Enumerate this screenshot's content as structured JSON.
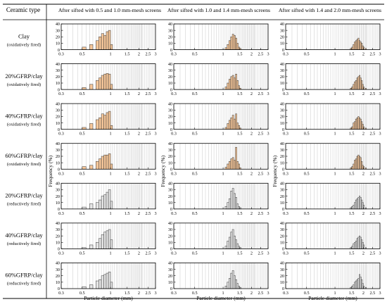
{
  "table": {
    "header_first": "Ceramic type",
    "columns": [
      "After sifted with 0.5 and 1.0 mm-mesh screens",
      "After sifted with 1.0 and 1.4 mm-mesh screens",
      "After sifted with 1.4 and 2.0 mm-mesh screens"
    ],
    "rows": [
      {
        "name": "Clay",
        "firing": "(oxidatively fired)",
        "style": "oxidative"
      },
      {
        "name": "20%GFRP/clay",
        "firing": "(oxidatively fired)",
        "style": "oxidative"
      },
      {
        "name": "40%GFRP/clay",
        "firing": "(oxidatively fired)",
        "style": "oxidative"
      },
      {
        "name": "60%GFRP/clay",
        "firing": "(oxidatively fired)",
        "style": "oxidative"
      },
      {
        "name": "20%GFRP/clay",
        "firing": "(reductively fired)",
        "style": "reductive"
      },
      {
        "name": "40%GFRP/clay",
        "firing": "(reductively fired)",
        "style": "reductive"
      },
      {
        "name": "60%GFRP/clay",
        "firing": "(reductively fired)",
        "style": "reductive"
      }
    ]
  },
  "colors": {
    "oxidative_fill": "#f6c79a",
    "reductive_fill": "#e6e6e6",
    "bar_stroke": "#333333",
    "grid": "#b0b0b0",
    "border": "#000000"
  },
  "chart_data": {
    "type": "bar",
    "xscale": "log",
    "xlabel": "Particle diameter (mm)",
    "ylabel": "Frequency (%)",
    "xlim": [
      0.3,
      3
    ],
    "ylim": [
      0,
      40
    ],
    "x_ticks": [
      "0.3",
      "0.5",
      "1",
      "1.5",
      "2",
      "2.5",
      "3"
    ],
    "y_ticks": [
      "0",
      "10",
      "20",
      "30",
      "40"
    ],
    "bin_edges": [
      0.3,
      0.35,
      0.4,
      0.45,
      0.5,
      0.55,
      0.6,
      0.65,
      0.7,
      0.75,
      0.8,
      0.85,
      0.9,
      0.95,
      1.0,
      1.05,
      1.1,
      1.15,
      1.2,
      1.25,
      1.3,
      1.35,
      1.4,
      1.45,
      1.5,
      1.55,
      1.6,
      1.65,
      1.7,
      1.75,
      1.8,
      1.85,
      1.9,
      1.95,
      2.0,
      2.05,
      2.1,
      2.15,
      2.2,
      2.3,
      2.4,
      2.5,
      2.6,
      2.7,
      2.8,
      2.9,
      3.0
    ],
    "panels": [
      [
        {
          "bins": [
            0.5,
            0.55,
            0.6,
            0.65,
            0.7,
            0.75,
            0.8,
            0.85,
            0.9,
            0.95,
            1.0
          ],
          "values": [
            4,
            0,
            8,
            0,
            14,
            20,
            25,
            22,
            28,
            30,
            8
          ]
        },
        {
          "bins": [
            1.05,
            1.1,
            1.15,
            1.2,
            1.25,
            1.3,
            1.35,
            1.4,
            1.45,
            1.5
          ],
          "values": [
            3,
            8,
            14,
            20,
            24,
            22,
            18,
            10,
            4,
            2
          ]
        },
        {
          "bins": [
            1.45,
            1.5,
            1.55,
            1.6,
            1.65,
            1.7,
            1.75,
            1.8,
            1.85,
            1.9,
            1.95,
            2.0,
            2.1
          ],
          "values": [
            2,
            4,
            8,
            12,
            14,
            16,
            18,
            14,
            12,
            10,
            6,
            4,
            2
          ]
        }
      ],
      [
        {
          "bins": [
            0.5,
            0.55,
            0.6,
            0.65,
            0.7,
            0.75,
            0.8,
            0.85,
            0.9,
            0.95,
            1.0
          ],
          "values": [
            3,
            0,
            8,
            0,
            14,
            18,
            22,
            24,
            25,
            24,
            8
          ]
        },
        {
          "bins": [
            1.05,
            1.1,
            1.15,
            1.2,
            1.25,
            1.3,
            1.35,
            1.4,
            1.45,
            1.5
          ],
          "values": [
            4,
            10,
            16,
            20,
            22,
            18,
            24,
            14,
            6,
            2
          ]
        },
        {
          "bins": [
            1.45,
            1.5,
            1.55,
            1.6,
            1.65,
            1.7,
            1.75,
            1.8,
            1.85,
            1.9,
            1.95,
            2.0,
            2.1
          ],
          "values": [
            2,
            4,
            8,
            12,
            14,
            18,
            20,
            22,
            18,
            14,
            8,
            4,
            2
          ]
        }
      ],
      [
        {
          "bins": [
            0.5,
            0.55,
            0.6,
            0.65,
            0.7,
            0.75,
            0.8,
            0.85,
            0.9,
            0.95,
            1.0
          ],
          "values": [
            3,
            0,
            9,
            0,
            15,
            18,
            24,
            22,
            26,
            28,
            6
          ]
        },
        {
          "bins": [
            1.05,
            1.1,
            1.15,
            1.2,
            1.25,
            1.3,
            1.35,
            1.4,
            1.45,
            1.5
          ],
          "values": [
            3,
            9,
            14,
            18,
            22,
            16,
            24,
            10,
            6,
            2
          ]
        },
        {
          "bins": [
            1.45,
            1.5,
            1.55,
            1.6,
            1.65,
            1.7,
            1.75,
            1.8,
            1.85,
            1.9,
            1.95,
            2.0,
            2.1
          ],
          "values": [
            2,
            4,
            10,
            12,
            16,
            18,
            20,
            18,
            16,
            12,
            8,
            4,
            2
          ]
        }
      ],
      [
        {
          "bins": [
            0.5,
            0.55,
            0.6,
            0.65,
            0.7,
            0.75,
            0.8,
            0.85,
            0.9,
            0.95,
            1.0
          ],
          "values": [
            4,
            0,
            6,
            0,
            12,
            16,
            20,
            22,
            22,
            24,
            8
          ]
        },
        {
          "bins": [
            1.05,
            1.1,
            1.15,
            1.2,
            1.25,
            1.3,
            1.35,
            1.4,
            1.45,
            1.5
          ],
          "values": [
            3,
            8,
            12,
            16,
            18,
            14,
            34,
            12,
            8,
            2
          ]
        },
        {
          "bins": [
            1.45,
            1.5,
            1.55,
            1.6,
            1.65,
            1.7,
            1.75,
            1.8,
            1.85,
            1.9,
            1.95,
            2.0,
            2.1
          ],
          "values": [
            2,
            4,
            8,
            14,
            16,
            20,
            22,
            20,
            18,
            12,
            6,
            4,
            2
          ]
        }
      ],
      [
        {
          "bins": [
            0.5,
            0.55,
            0.6,
            0.65,
            0.7,
            0.75,
            0.8,
            0.85,
            0.9,
            0.95,
            1.0
          ],
          "values": [
            3,
            0,
            8,
            0,
            10,
            14,
            20,
            22,
            26,
            30,
            12
          ]
        },
        {
          "bins": [
            1.05,
            1.1,
            1.15,
            1.2,
            1.25,
            1.3,
            1.35,
            1.4,
            1.45,
            1.5
          ],
          "values": [
            4,
            10,
            16,
            28,
            32,
            24,
            18,
            8,
            4,
            2
          ]
        },
        {
          "bins": [
            1.45,
            1.5,
            1.55,
            1.6,
            1.65,
            1.7,
            1.75,
            1.8,
            1.85,
            1.9,
            1.95,
            2.0,
            2.1
          ],
          "values": [
            2,
            4,
            6,
            10,
            14,
            16,
            18,
            20,
            18,
            14,
            10,
            6,
            2
          ]
        }
      ],
      [
        {
          "bins": [
            0.5,
            0.55,
            0.6,
            0.65,
            0.7,
            0.75,
            0.8,
            0.85,
            0.9,
            0.95,
            1.0
          ],
          "values": [
            2,
            0,
            6,
            0,
            10,
            16,
            22,
            26,
            28,
            30,
            14
          ]
        },
        {
          "bins": [
            1.05,
            1.1,
            1.15,
            1.2,
            1.25,
            1.3,
            1.35,
            1.4,
            1.45,
            1.5
          ],
          "values": [
            4,
            12,
            18,
            26,
            30,
            20,
            14,
            8,
            4,
            2
          ]
        },
        {
          "bins": [
            1.45,
            1.5,
            1.55,
            1.6,
            1.65,
            1.7,
            1.75,
            1.8,
            1.85,
            1.9,
            1.95,
            2.0,
            2.1
          ],
          "values": [
            2,
            4,
            8,
            10,
            12,
            16,
            18,
            20,
            18,
            14,
            10,
            6,
            2
          ]
        }
      ],
      [
        {
          "bins": [
            0.5,
            0.55,
            0.6,
            0.65,
            0.7,
            0.75,
            0.8,
            0.85,
            0.9,
            0.95,
            1.0
          ],
          "values": [
            3,
            0,
            6,
            0,
            12,
            14,
            20,
            22,
            24,
            26,
            10
          ]
        },
        {
          "bins": [
            1.05,
            1.1,
            1.15,
            1.2,
            1.25,
            1.3,
            1.35,
            1.4,
            1.45,
            1.5
          ],
          "values": [
            4,
            10,
            16,
            24,
            28,
            20,
            14,
            8,
            4,
            2
          ]
        },
        {
          "bins": [
            1.45,
            1.5,
            1.55,
            1.6,
            1.65,
            1.7,
            1.75,
            1.8,
            1.85,
            1.9,
            1.95,
            2.0,
            2.1
          ],
          "values": [
            2,
            4,
            6,
            10,
            12,
            14,
            16,
            22,
            18,
            14,
            8,
            4,
            2
          ]
        }
      ]
    ]
  }
}
